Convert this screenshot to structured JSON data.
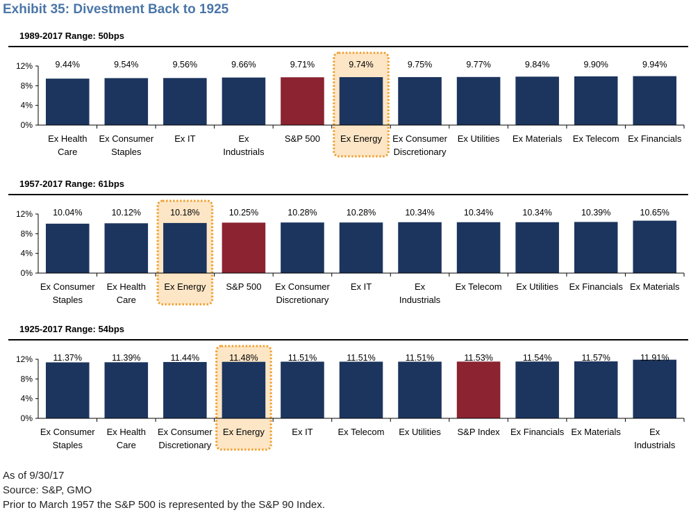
{
  "title": "Exhibit 35: Divestment Back to 1925",
  "colors": {
    "bar": "#1c355e",
    "benchmark": "#8b2331",
    "highlight_fill": "#fde6c6",
    "highlight_border": "#f0a030",
    "title": "#4a76a8"
  },
  "chart_data": [
    {
      "type": "bar",
      "title": "1989-2017 Range: 50bps",
      "categories": [
        "Ex Health Care",
        "Ex Consumer Staples",
        "Ex IT",
        "Ex Industrials",
        "S&P 500",
        "Ex Energy",
        "Ex Consumer Discretionary",
        "Ex Utilities",
        "Ex Materials",
        "Ex Telecom",
        "Ex Financials"
      ],
      "values": [
        9.44,
        9.54,
        9.56,
        9.66,
        9.71,
        9.74,
        9.75,
        9.77,
        9.84,
        9.9,
        9.94
      ],
      "value_labels": [
        "9.44%",
        "9.54%",
        "9.56%",
        "9.66%",
        "9.71%",
        "9.74%",
        "9.75%",
        "9.77%",
        "9.84%",
        "9.90%",
        "9.94%"
      ],
      "benchmark": "S&P 500",
      "highlighted": "Ex Energy",
      "y_ticks": [
        "0%",
        "4%",
        "8%",
        "12%"
      ],
      "ylim": [
        0,
        12
      ],
      "grid": false
    },
    {
      "type": "bar",
      "title": "1957-2017 Range: 61bps",
      "categories": [
        "Ex Consumer Staples",
        "Ex Health Care",
        "Ex Energy",
        "S&P 500",
        "Ex Consumer Discretionary",
        "Ex IT",
        "Ex Industrials",
        "Ex Telecom",
        "Ex Utilities",
        "Ex Financials",
        "Ex Materials"
      ],
      "values": [
        10.04,
        10.12,
        10.18,
        10.25,
        10.28,
        10.28,
        10.34,
        10.34,
        10.34,
        10.39,
        10.65
      ],
      "value_labels": [
        "10.04%",
        "10.12%",
        "10.18%",
        "10.25%",
        "10.28%",
        "10.28%",
        "10.34%",
        "10.34%",
        "10.34%",
        "10.39%",
        "10.65%"
      ],
      "benchmark": "S&P 500",
      "highlighted": "Ex Energy",
      "y_ticks": [
        "0%",
        "4%",
        "8%",
        "12%"
      ],
      "ylim": [
        0,
        12
      ],
      "grid": false
    },
    {
      "type": "bar",
      "title": "1925-2017 Range: 54bps",
      "categories": [
        "Ex Consumer Staples",
        "Ex Health Care",
        "Ex Consumer Discretionary",
        "Ex Energy",
        "Ex IT",
        "Ex Telecom",
        "Ex Utilities",
        "S&P Index",
        "Ex Financials",
        "Ex Materials",
        "Ex Industrials"
      ],
      "values": [
        11.37,
        11.39,
        11.44,
        11.48,
        11.51,
        11.51,
        11.51,
        11.53,
        11.54,
        11.57,
        11.91
      ],
      "value_labels": [
        "11.37%",
        "11.39%",
        "11.44%",
        "11.48%",
        "11.51%",
        "11.51%",
        "11.51%",
        "11.53%",
        "11.54%",
        "11.57%",
        "11.91%"
      ],
      "benchmark": "S&P Index",
      "highlighted": "Ex Energy",
      "y_ticks": [
        "0%",
        "4%",
        "8%",
        "12%"
      ],
      "ylim": [
        0,
        12
      ],
      "grid": false
    }
  ],
  "footer": {
    "as_of": "As of 9/30/17",
    "source": "Source: S&P, GMO",
    "note": "Prior to March 1957 the S&P 500 is represented by the S&P 90 Index."
  }
}
